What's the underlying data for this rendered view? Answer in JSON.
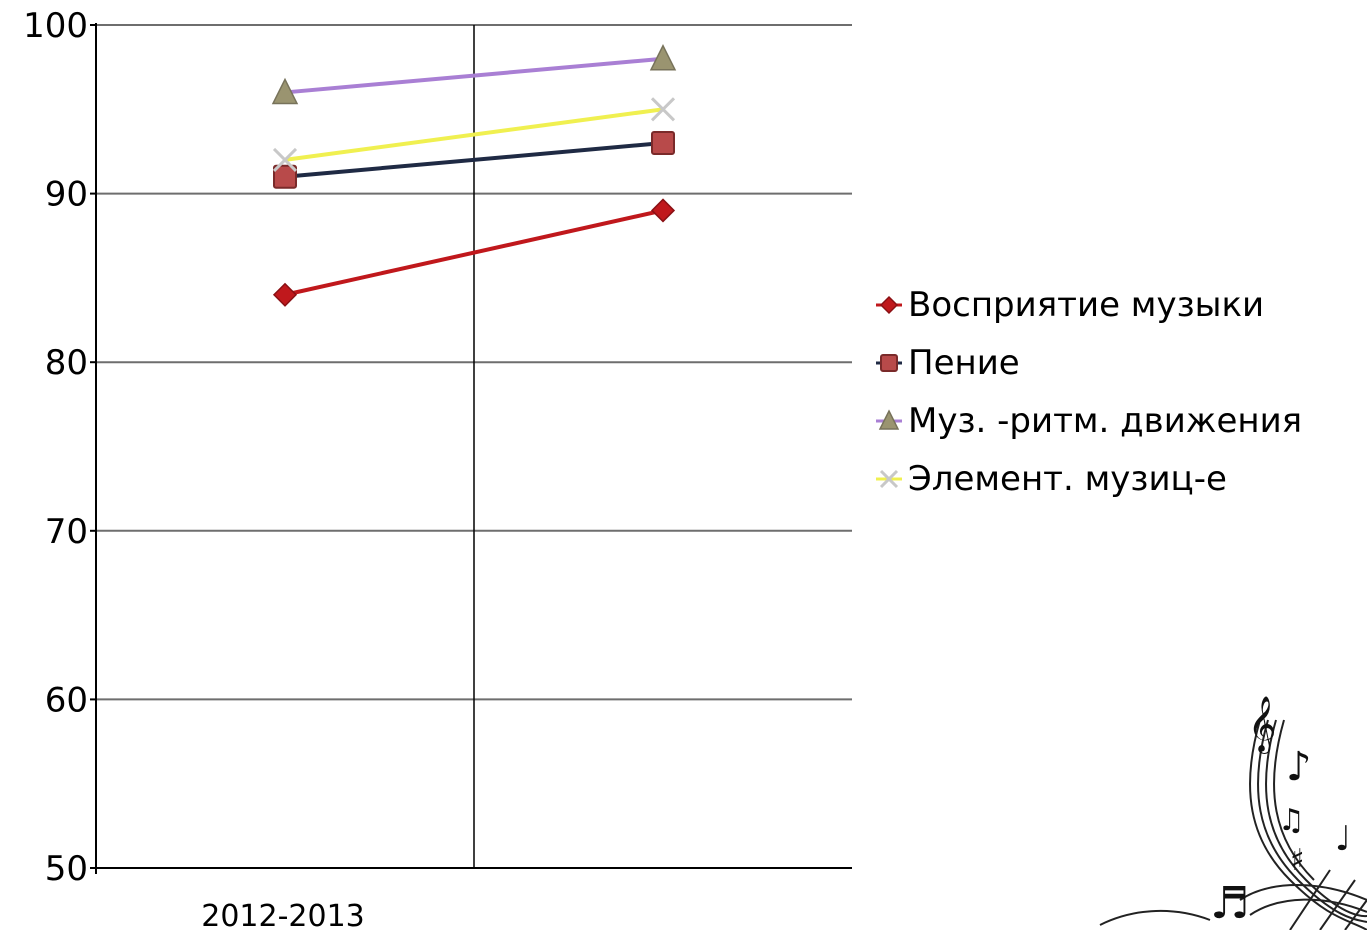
{
  "chart_data": {
    "type": "line",
    "categories": [
      "2012-2013",
      ""
    ],
    "ylim": [
      50,
      100
    ],
    "yticks": [
      50,
      60,
      70,
      80,
      90,
      100
    ],
    "grid": true,
    "legend_position": "right",
    "series": [
      {
        "name": "Восприятие музыки",
        "values": [
          84,
          89
        ],
        "color": "#c0181c",
        "marker": "diamond"
      },
      {
        "name": "Пение",
        "values": [
          91,
          93
        ],
        "color": "#1f2a44",
        "marker": "square",
        "marker_color": "#b84a4a"
      },
      {
        "name": "Муз. -ритм. движения",
        "values": [
          96,
          98
        ],
        "color": "#a97fd4",
        "marker": "triangle",
        "marker_color": "#9a9470"
      },
      {
        "name": "Элемент. музиц-е",
        "values": [
          92,
          95
        ],
        "color": "#f0f050",
        "marker": "x",
        "marker_color": "#c8c8c8"
      }
    ]
  }
}
